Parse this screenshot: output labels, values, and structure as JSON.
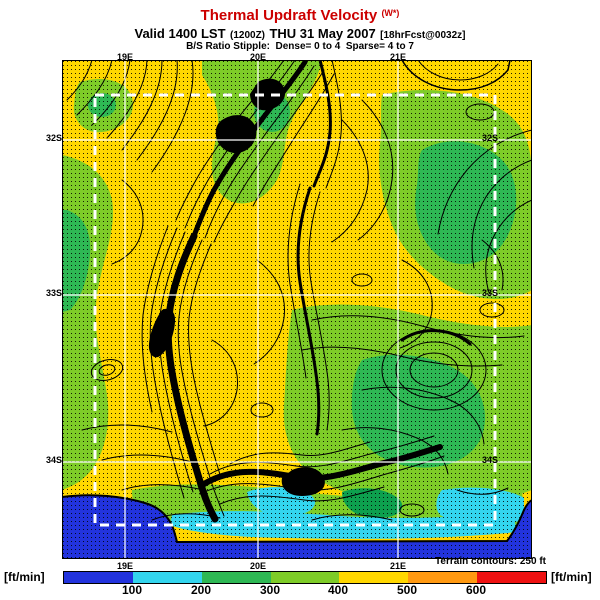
{
  "header": {
    "title": "Thermal Updraft Velocity",
    "title_unit": "(W*)",
    "valid_main": "Valid 1400 LST",
    "valid_z": "(1200Z)",
    "valid_date": "THU 31 May 2007",
    "valid_fcst": "[18hrFcst@0032z]",
    "stipple_note": "B/S Ratio Stipple:  Dense= 0 to 4  Sparse= 4 to 7"
  },
  "map": {
    "lon_labels": [
      "19E",
      "20E",
      "21E"
    ],
    "lat_labels": [
      "32S",
      "33S",
      "34S"
    ],
    "terrain_label": "Terrain contours:",
    "terrain_value": "250 ft"
  },
  "footer": {
    "units_left": "[ft/min]",
    "units_right": "[ft/min]",
    "ticks": [
      "100",
      "200",
      "300",
      "400",
      "500",
      "600"
    ],
    "colors": [
      "#2233dd",
      "#33d5ee",
      "#2eb854",
      "#7ecc28",
      "#ffd700",
      "#ff9911",
      "#ee1111"
    ]
  },
  "colors": {
    "title_red": "#cc0000",
    "land_yellow": "#ffd700",
    "land_light_green": "#7ecc28",
    "land_green": "#2eb854",
    "coast_cyan": "#33d5ee",
    "ocean_blue": "#2233dd",
    "grid_white": "#ffffff",
    "contour_black": "#000000"
  }
}
